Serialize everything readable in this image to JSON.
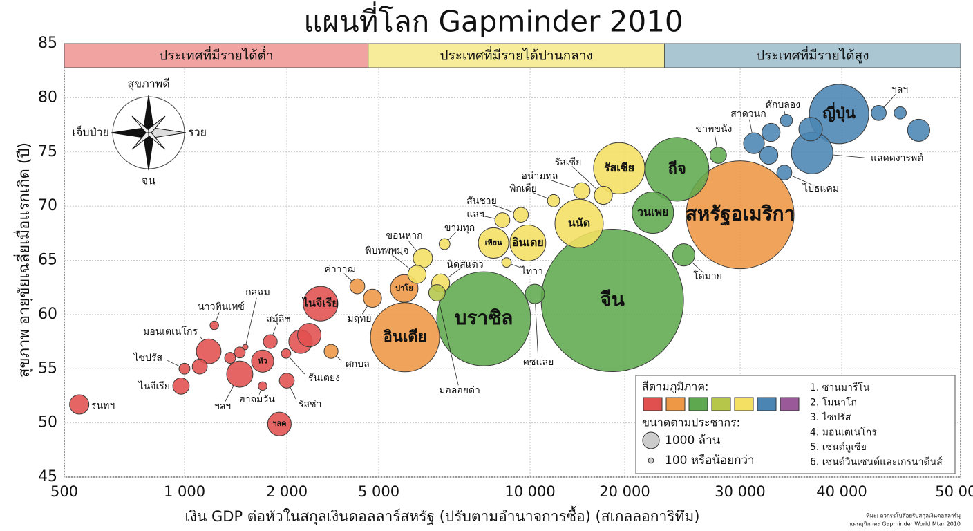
{
  "chart_data": {
    "type": "bubble",
    "title": "แผนที่โลก Gapminder 2010",
    "x_label": "เงิน GDP ต่อหัวในสกุลเงินดอลลาร์สหรัฐ (ปรับตามอำนาจการซื้อ) (สเกลลอการิทึม)",
    "y_label": "สุขภาพ อายุขัยเฉลี่ยเมื่อแรกเกิด (ปี)",
    "log_x": true,
    "grid": true,
    "xlim": [
      500,
      50000
    ],
    "ylim": [
      45,
      85
    ],
    "xticks": [
      500,
      {
        "value": 1000,
        "label": "1 000"
      },
      {
        "value": 2000,
        "label": "2 000"
      },
      {
        "value": 5000,
        "label": "5 000"
      },
      {
        "value": 10000,
        "label": "10 000"
      },
      {
        "value": 20000,
        "label": "20 000"
      },
      {
        "value": 30000,
        "label": "30 000"
      },
      {
        "value": 40000,
        "label": "40 000"
      },
      {
        "value": 50000,
        "label": "50 000"
      }
    ],
    "yticks": [
      45,
      50,
      55,
      60,
      65,
      70,
      75,
      80,
      85
    ],
    "income_bands": [
      {
        "label": "ประเทศที่มีรายได้ต่ำ",
        "color": "#f0a3a0",
        "from": 500,
        "to": 4500
      },
      {
        "label": "ประเทศที่มีรายได้ปานกลาง",
        "color": "#f6ec9a",
        "from": 4500,
        "to": 23000
      },
      {
        "label": "ประเทศที่มีรายได้สูง",
        "color": "#a9c6d2",
        "from": 23000,
        "to": 50000
      }
    ],
    "compass": {
      "up": "สุขภาพดี",
      "down": "จน",
      "left": "เจ็บป่วย",
      "right": "รวย"
    },
    "bubbles": [
      {
        "x": 545,
        "y": 51.7,
        "size": 25,
        "color": "#e0504f",
        "label": "รนทฯ"
      },
      {
        "x": 980,
        "y": 53.4,
        "size": 18,
        "color": "#e0504f",
        "label": "ไนจีเรีย"
      },
      {
        "x": 1000,
        "y": 55.0,
        "size": 8,
        "color": "#e0504f",
        "label": "ไซปรัส"
      },
      {
        "x": 1109,
        "y": 55.2,
        "size": 15,
        "color": "#e0504f"
      },
      {
        "x": 1178,
        "y": 56.6,
        "size": 41,
        "color": "#e0504f",
        "label": "มอนเตเนโกร"
      },
      {
        "x": 1224,
        "y": 59.0,
        "size": 5,
        "color": "#e0504f",
        "label": "นาวทินเทซ์"
      },
      {
        "x": 1362,
        "y": 56.0,
        "size": 8,
        "color": "#e0504f"
      },
      {
        "x": 1454,
        "y": 54.5,
        "size": 46,
        "color": "#e0504f",
        "label": "ฯลฯ"
      },
      {
        "x": 1454,
        "y": 56.5,
        "size": 8,
        "color": "#e0504f"
      },
      {
        "x": 1510,
        "y": 57.0,
        "size": 2,
        "color": "#e0504f",
        "label": "กลฉม"
      },
      {
        "x": 1698,
        "y": 53.4,
        "size": 5,
        "color": "#e0504f",
        "label": "ฮาถมวัน"
      },
      {
        "x": 1698,
        "y": 55.7,
        "size": 33,
        "color": "#e0504f",
        "label": "หัว"
      },
      {
        "x": 1788,
        "y": 57.5,
        "size": 13,
        "color": "#e0504f",
        "label": "สมุ์ลีช"
      },
      {
        "x": 2000,
        "y": 53.9,
        "size": 15,
        "color": "#e0504f",
        "label": "รัสซ่า"
      },
      {
        "x": 1990,
        "y": 56.4,
        "size": 6,
        "color": "#e0504f",
        "label": "รันเตยง"
      },
      {
        "x": 1903,
        "y": 49.9,
        "size": 37,
        "color": "#e0504f",
        "label": "ฯลค"
      },
      {
        "x": 2294,
        "y": 57.5,
        "size": 37,
        "color": "#e0504f"
      },
      {
        "x": 2503,
        "y": 58.1,
        "size": 37,
        "color": "#e0504f"
      },
      {
        "x": 2800,
        "y": 61.0,
        "size": 80,
        "color": "#e0504f",
        "label": "ไนจีเรีย"
      },
      {
        "x": 3110,
        "y": 56.6,
        "size": 13,
        "color": "#ee9744",
        "label": "ศกบล"
      },
      {
        "x": 4040,
        "y": 62.6,
        "size": 15,
        "color": "#ee9744",
        "label": "ค่าาาฌ"
      },
      {
        "x": 4700,
        "y": 61.5,
        "size": 22,
        "color": "#ee9744",
        "label": "มฤทย"
      },
      {
        "x": 5640,
        "y": 57.9,
        "size": 319,
        "color": "#ee9744",
        "label": "อินเดีย"
      },
      {
        "x": 5620,
        "y": 62.4,
        "size": 51,
        "color": "#ee9744",
        "label": "ปาโย"
      },
      {
        "x": 30000,
        "y": 69.2,
        "size": 776,
        "color": "#ee9744",
        "label": "สหรัฐอเมริกา"
      },
      {
        "x": 8090,
        "y": 59.6,
        "size": 590,
        "color": "#5ea84f",
        "label": "บราซิล"
      },
      {
        "x": 10360,
        "y": 61.9,
        "size": 25,
        "color": "#5ea84f",
        "label": "คซแล่ย"
      },
      {
        "x": 18270,
        "y": 61.3,
        "size": 1353,
        "color": "#5ea84f",
        "label": "จีน"
      },
      {
        "x": 24040,
        "y": 73.4,
        "size": 270,
        "color": "#5ea84f",
        "label": "ถีจ"
      },
      {
        "x": 22080,
        "y": 69.4,
        "size": 115,
        "color": "#5ea84f",
        "label": "วนเพย"
      },
      {
        "x": 24610,
        "y": 65.5,
        "size": 33,
        "color": "#5ea84f",
        "label": "โดมาย"
      },
      {
        "x": 27780,
        "y": 74.7,
        "size": 18,
        "color": "#5ea84f",
        "label": "ข่าพขนัง"
      },
      {
        "x": 6530,
        "y": 62.0,
        "size": 18,
        "color": "#b5c64a",
        "label": "มอลอยด่า"
      },
      {
        "x": 6120,
        "y": 65.2,
        "size": 25,
        "color": "#f4e062",
        "label": "ขอนหาก"
      },
      {
        "x": 5960,
        "y": 63.7,
        "size": 22,
        "color": "#f4e062",
        "label": "พิบทพพมฺจ"
      },
      {
        "x": 6640,
        "y": 62.9,
        "size": 22,
        "color": "#f4e062",
        "label": "นิดสแดว"
      },
      {
        "x": 6760,
        "y": 66.5,
        "size": 8,
        "color": "#f4e062",
        "label": "ขามทุก"
      },
      {
        "x": 8460,
        "y": 66.6,
        "size": 62,
        "color": "#f4e062",
        "label": "เพียน"
      },
      {
        "x": 9900,
        "y": 66.6,
        "size": 86,
        "color": "#f4e062",
        "label": "อินเดย"
      },
      {
        "x": 8810,
        "y": 68.7,
        "size": 15,
        "color": "#f4e062",
        "label": "แลฯ"
      },
      {
        "x": 9590,
        "y": 69.2,
        "size": 15,
        "color": "#f4e062",
        "label": "สันชาย"
      },
      {
        "x": 8980,
        "y": 64.8,
        "size": 6,
        "color": "#f4e062",
        "label": "ไทาา"
      },
      {
        "x": 14320,
        "y": 68.4,
        "size": 156,
        "color": "#f4e062",
        "label": "นนัด"
      },
      {
        "x": 14610,
        "y": 71.4,
        "size": 18,
        "color": "#f4e062",
        "label": "อน่ามทล"
      },
      {
        "x": 11880,
        "y": 70.5,
        "size": 10,
        "color": "#f4e062",
        "label": "พิกเดีย"
      },
      {
        "x": 17100,
        "y": 71.0,
        "size": 22,
        "color": "#f4e062",
        "label": "รัสเซีย"
      },
      {
        "x": 19200,
        "y": 73.5,
        "size": 175,
        "color": "#f4e062",
        "label": "รัสเซีย"
      },
      {
        "x": 39700,
        "y": 78.5,
        "size": 236,
        "color": "#4a85b3",
        "label": "ญี่ปุ่น"
      },
      {
        "x": 36790,
        "y": 74.9,
        "size": 115,
        "color": "#4a85b3",
        "label": "แลดดงารพต์"
      },
      {
        "x": 36630,
        "y": 77.1,
        "size": 37,
        "color": "#4a85b3"
      },
      {
        "x": 31200,
        "y": 75.8,
        "size": 29,
        "color": "#4a85b3",
        "label": "สาดวนก"
      },
      {
        "x": 32740,
        "y": 76.8,
        "size": 22,
        "color": "#4a85b3"
      },
      {
        "x": 32540,
        "y": 74.7,
        "size": 22,
        "color": "#4a85b3"
      },
      {
        "x": 34000,
        "y": 73.1,
        "size": 15,
        "color": "#4a85b3",
        "label": "ไปธแคม"
      },
      {
        "x": 34200,
        "y": 77.9,
        "size": 10,
        "color": "#4a85b3",
        "label": "ศักบลอง"
      },
      {
        "x": 42880,
        "y": 78.6,
        "size": 15,
        "color": "#4a85b3",
        "label": "ฯลฯ"
      },
      {
        "x": 44640,
        "y": 78.6,
        "size": 10,
        "color": "#4a85b3"
      },
      {
        "x": 46220,
        "y": 77.0,
        "size": 33,
        "color": "#4a85b3"
      }
    ],
    "legend": {
      "color_title": "สีตามภูมิภาค:",
      "colors": [
        "#e0504f",
        "#ee9744",
        "#5ea84f",
        "#b5c64a",
        "#f4e062",
        "#4a85b3",
        "#9a5a9a"
      ],
      "size_title": "ขนาดตามประชากร:",
      "sizes": [
        {
          "value": 1000,
          "label": "1000 ล้าน"
        },
        {
          "value": 100,
          "label": "100 หรือน้อยกว่า"
        }
      ],
      "notes": [
        "1. ซานมารีโน",
        "2. โมนาโก",
        "3. ไซปรัส",
        "4. มอนเตเนโกร",
        "5. เซนต์ลูเซีย",
        "6. เซนต์วินเซนต์และเกรนาดีนส์"
      ]
    },
    "source": [
      "ที่มะ: ถวกรรโบสัอยรับสกุลเงินดอลลาร์มุ",
      "แผนฤนิกาดะ Gapminder World Mtar 2010"
    ]
  }
}
